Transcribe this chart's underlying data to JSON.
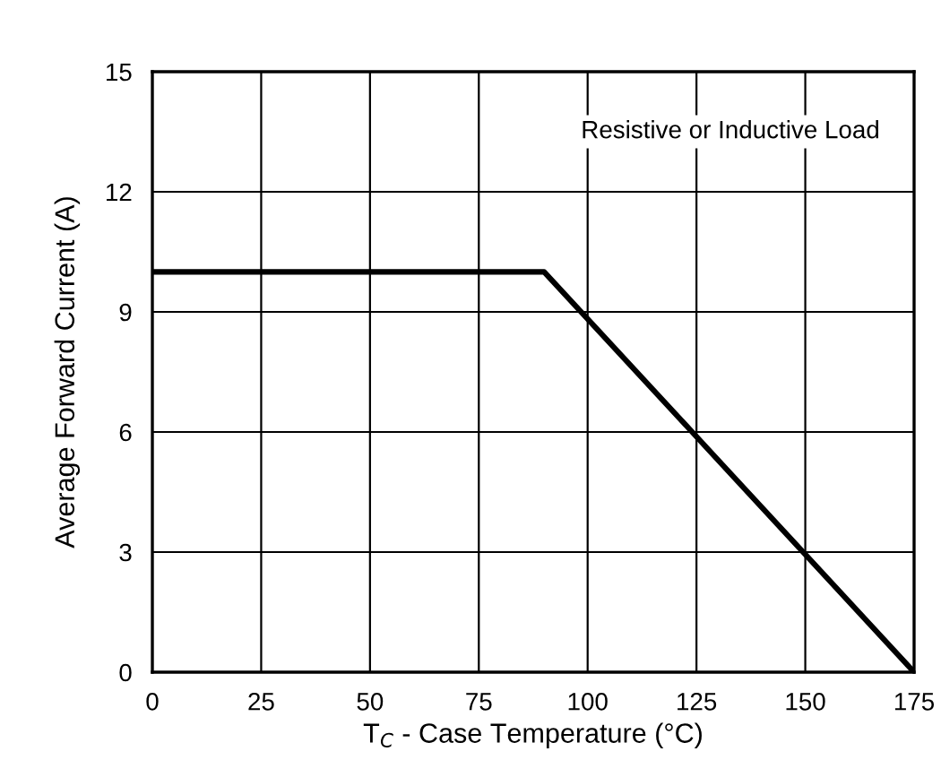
{
  "chart_data": {
    "type": "line",
    "xlabel": "T$_{C}$ - Case Temperature (°C)",
    "ylabel": "Average Forward Current (A)",
    "annotations": [
      "Resistive or Inductive Load"
    ],
    "x": [
      0,
      90,
      175
    ],
    "series": [
      {
        "color": "#000000",
        "values": [
          10,
          10,
          0
        ]
      }
    ],
    "xlim": [
      0,
      175
    ],
    "xticks": [
      0,
      25,
      50,
      75,
      100,
      125,
      150,
      175
    ],
    "ylim": [
      0,
      15
    ],
    "yticks": [
      0,
      3,
      6,
      9,
      12,
      15
    ],
    "grid": true,
    "marker": "none",
    "line_style": "solid"
  }
}
